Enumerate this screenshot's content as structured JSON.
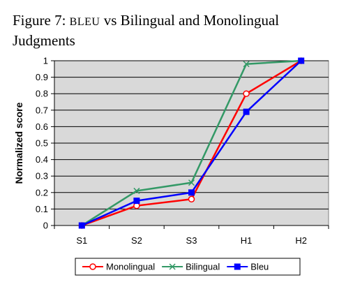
{
  "caption": {
    "prefix": "Figure 7: ",
    "smallcaps": "BLEU",
    "rest": " vs Bilingual and Monolingual Judgments"
  },
  "chart_data": {
    "type": "line",
    "title": "",
    "xlabel": "",
    "ylabel": "Normalized score",
    "categories": [
      "S1",
      "S2",
      "S3",
      "H1",
      "H2"
    ],
    "ylim": [
      0,
      1
    ],
    "yticks": [
      0,
      0.1,
      0.2,
      0.3,
      0.4,
      0.5,
      0.6,
      0.7,
      0.8,
      0.9,
      1
    ],
    "ytick_labels": [
      "0",
      "0.1",
      "0.2",
      "0.3",
      "0.4",
      "0.5",
      "0.6",
      "0.7",
      "0.8",
      "0.9",
      "1"
    ],
    "grid": true,
    "legend_position": "bottom",
    "plot_background": "#d9d9d9",
    "series": [
      {
        "name": "Monolingual",
        "values": [
          0,
          0.12,
          0.16,
          0.8,
          1.0
        ],
        "color": "#ff0000",
        "marker": "circle"
      },
      {
        "name": "Bilingual",
        "values": [
          0,
          0.21,
          0.26,
          0.98,
          1.0
        ],
        "color": "#339966",
        "marker": "x"
      },
      {
        "name": "Bleu",
        "values": [
          0,
          0.15,
          0.2,
          0.69,
          1.0
        ],
        "color": "#0000ff",
        "marker": "square"
      }
    ]
  }
}
